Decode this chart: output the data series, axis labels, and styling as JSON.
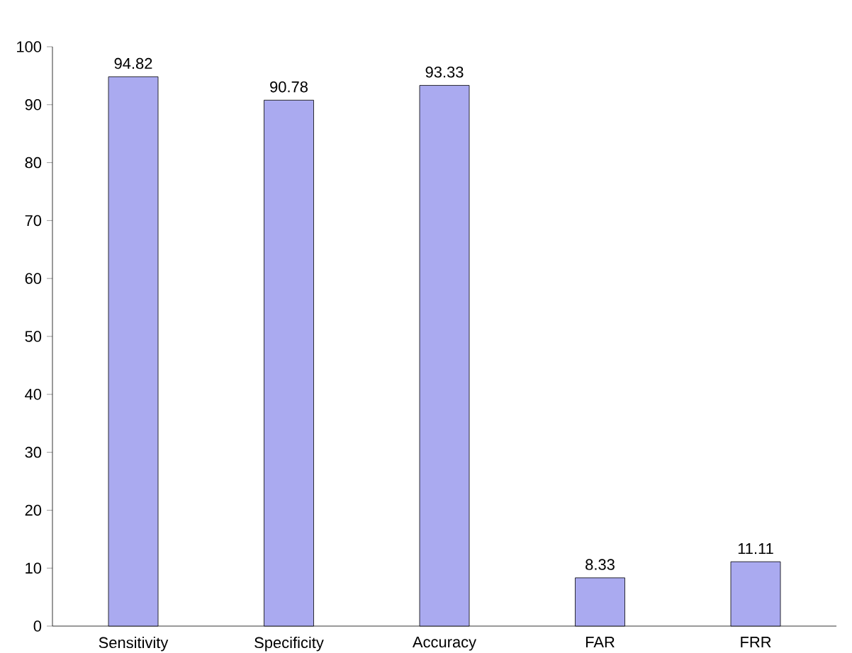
{
  "chart_data": {
    "type": "bar",
    "categories": [
      "Sensitivity",
      "Specificity",
      "Accuracy",
      "FAR",
      "FRR"
    ],
    "values": [
      94.82,
      90.78,
      93.33,
      8.33,
      11.11
    ],
    "color": "#aaaaf0",
    "ylim": [
      0,
      100
    ],
    "yticks": [
      0,
      10,
      20,
      30,
      40,
      50,
      60,
      70,
      80,
      90,
      100
    ],
    "data_labels": true,
    "grid": false
  }
}
